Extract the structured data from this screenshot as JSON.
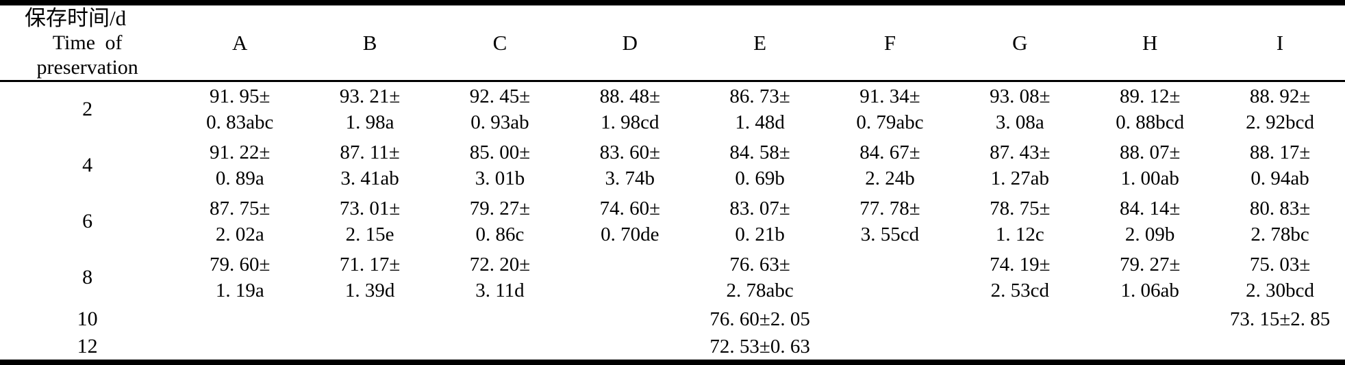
{
  "page": {
    "background_color": "#ffffff",
    "text_color": "#000000",
    "rule_color": "#000000"
  },
  "table": {
    "header": {
      "row_label_zh": "保存时间/d",
      "row_label_en_line1": "Time of",
      "row_label_en_line2": "preservation",
      "columns": [
        "A",
        "B",
        "C",
        "D",
        "E",
        "F",
        "G",
        "H",
        "I"
      ]
    },
    "rows": [
      {
        "time": "2",
        "cells": [
          [
            "91. 95±",
            "0. 83abc"
          ],
          [
            "93. 21±",
            "1. 98a"
          ],
          [
            "92. 45±",
            "0. 93ab"
          ],
          [
            "88. 48±",
            "1. 98cd"
          ],
          [
            "86. 73±",
            "1. 48d"
          ],
          [
            "91. 34±",
            "0. 79abc"
          ],
          [
            "93. 08±",
            "3. 08a"
          ],
          [
            "89. 12±",
            "0. 88bcd"
          ],
          [
            "88. 92±",
            "2. 92bcd"
          ]
        ]
      },
      {
        "time": "4",
        "cells": [
          [
            "91. 22±",
            "0. 89a"
          ],
          [
            "87. 11±",
            "3. 41ab"
          ],
          [
            "85. 00±",
            "3. 01b"
          ],
          [
            "83. 60±",
            "3. 74b"
          ],
          [
            "84. 58±",
            "0. 69b"
          ],
          [
            "84. 67±",
            "2. 24b"
          ],
          [
            "87. 43±",
            "1. 27ab"
          ],
          [
            "88. 07±",
            "1. 00ab"
          ],
          [
            "88. 17±",
            "0. 94ab"
          ]
        ]
      },
      {
        "time": "6",
        "cells": [
          [
            "87. 75±",
            "2. 02a"
          ],
          [
            "73. 01±",
            "2. 15e"
          ],
          [
            "79. 27±",
            "0. 86c"
          ],
          [
            "74. 60±",
            "0. 70de"
          ],
          [
            "83. 07±",
            "0. 21b"
          ],
          [
            "77. 78±",
            "3. 55cd"
          ],
          [
            "78. 75±",
            "1. 12c"
          ],
          [
            "84. 14±",
            "2. 09b"
          ],
          [
            "80. 83±",
            "2. 78bc"
          ]
        ]
      },
      {
        "time": "8",
        "cells": [
          [
            "79. 60±",
            "1. 19a"
          ],
          [
            "71. 17±",
            "1. 39d"
          ],
          [
            "72. 20±",
            "3. 11d"
          ],
          [
            "",
            ""
          ],
          [
            "76. 63±",
            "2. 78abc"
          ],
          [
            "",
            ""
          ],
          [
            "74. 19±",
            "2. 53cd"
          ],
          [
            "79. 27±",
            "1. 06ab"
          ],
          [
            "75. 03±",
            "2. 30bcd"
          ]
        ]
      },
      {
        "time": "10",
        "cells": [
          [
            "",
            ""
          ],
          [
            "",
            ""
          ],
          [
            "",
            ""
          ],
          [
            "",
            ""
          ],
          [
            "76. 60±2. 05",
            ""
          ],
          [
            "",
            ""
          ],
          [
            "",
            ""
          ],
          [
            "",
            ""
          ],
          [
            "73. 15±2. 85",
            ""
          ]
        ]
      },
      {
        "time": "12",
        "cells": [
          [
            "",
            ""
          ],
          [
            "",
            ""
          ],
          [
            "",
            ""
          ],
          [
            "",
            ""
          ],
          [
            "72. 53±0. 63",
            ""
          ],
          [
            "",
            ""
          ],
          [
            "",
            ""
          ],
          [
            "",
            ""
          ],
          [
            "",
            ""
          ]
        ]
      }
    ]
  }
}
